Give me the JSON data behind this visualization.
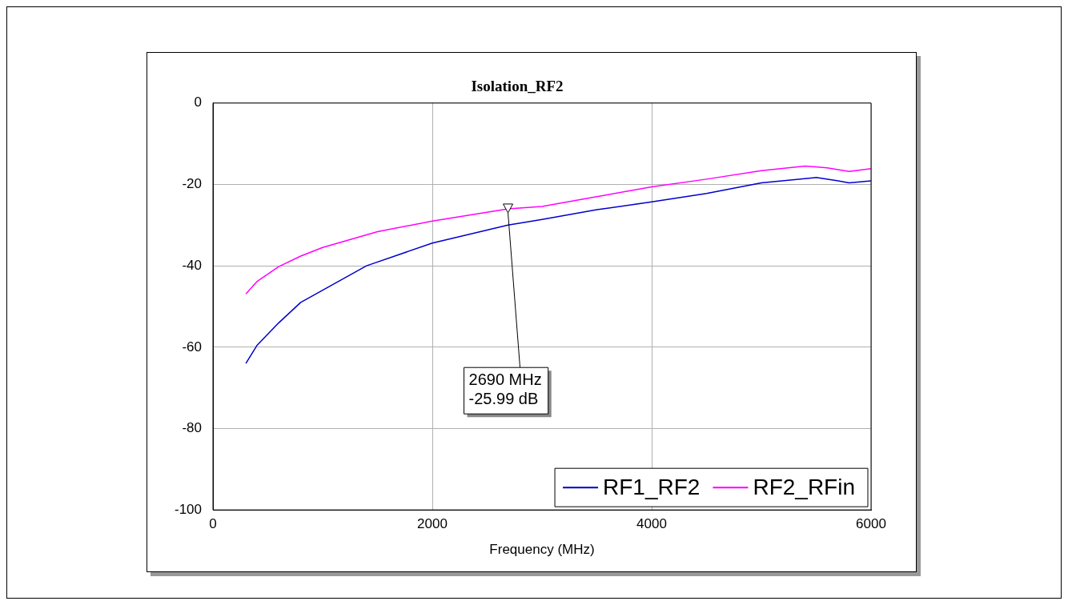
{
  "chart_data": {
    "type": "line",
    "title": "Isolation_RF2",
    "xlabel": "Frequency (MHz)",
    "xlim": [
      0,
      6000
    ],
    "xticks": [
      0,
      2000,
      4000,
      6000
    ],
    "ylim": [
      -100,
      0
    ],
    "yticks": [
      -100,
      -80,
      -60,
      -40,
      -20,
      0
    ],
    "grid": true,
    "legend": "bottom right",
    "marker": "none",
    "line_style": "solid",
    "series": [
      {
        "name": "RF1_RF2",
        "color": "#0000cc",
        "x": [
          300,
          400,
          600,
          800,
          1000,
          1400,
          2000,
          2690,
          3000,
          3500,
          4000,
          4500,
          5000,
          5500,
          5700,
          5800,
          6000
        ],
        "values": [
          -64,
          -59.6,
          -54,
          -49,
          -46,
          -40,
          -34.4,
          -30,
          -28.6,
          -26.2,
          -24.3,
          -22.2,
          -19.6,
          -18.3,
          -19.1,
          -19.6,
          -19.1
        ]
      },
      {
        "name": "RF2_RFin",
        "color": "#ff00ff",
        "x": [
          300,
          400,
          600,
          800,
          1000,
          1500,
          2000,
          2690,
          3000,
          3500,
          4000,
          4500,
          5000,
          5400,
          5600,
          5800,
          6000
        ],
        "values": [
          -46.9,
          -43.9,
          -40.2,
          -37.6,
          -35.5,
          -31.6,
          -29,
          -25.99,
          -25.4,
          -23,
          -20.6,
          -18.7,
          -16.6,
          -15.5,
          -15.9,
          -16.8,
          -16.1
        ]
      }
    ],
    "annotations": [
      {
        "text": "2690 MHz\n-25.99 dB",
        "x": 2690,
        "y": -25.99
      }
    ]
  }
}
